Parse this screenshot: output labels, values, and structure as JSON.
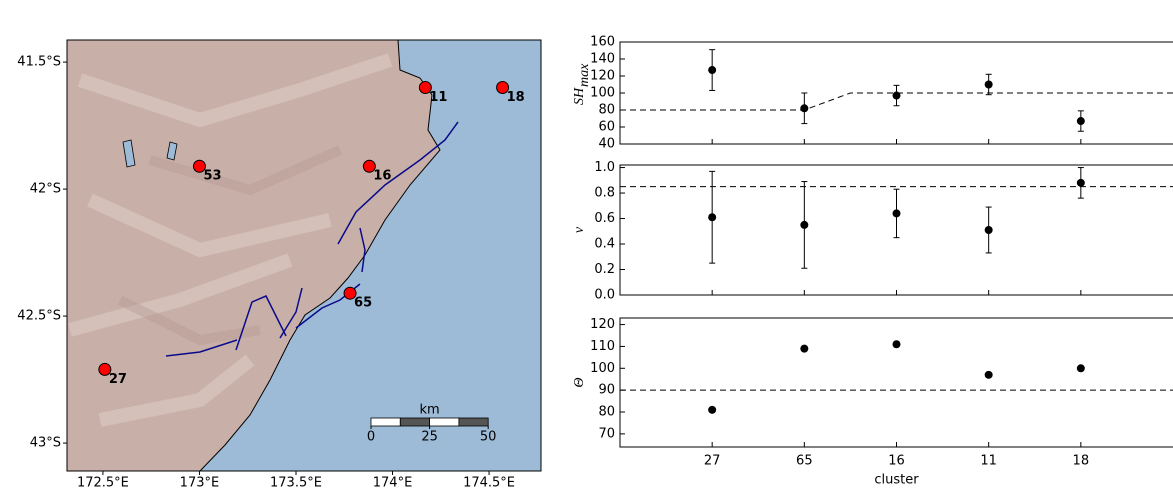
{
  "chart_data": [
    {
      "type": "map",
      "xlim": [
        172.314,
        174.769
      ],
      "ylim": [
        -43.11,
        -41.413
      ],
      "xticks": [
        {
          "value": 172.5,
          "label": "172.5°E"
        },
        {
          "value": 173,
          "label": "173°E"
        },
        {
          "value": 173.5,
          "label": "173.5°E"
        },
        {
          "value": 174,
          "label": "174°E"
        },
        {
          "value": 174.5,
          "label": "174.5°E"
        }
      ],
      "yticks": [
        {
          "value": -41.5,
          "label": "41.5°S"
        },
        {
          "value": -42,
          "label": "42°S"
        },
        {
          "value": -42.5,
          "label": "42.5°S"
        },
        {
          "value": -43,
          "label": "43°S"
        }
      ],
      "points": {
        "labels": [
          "11",
          "18",
          "53",
          "16",
          "65",
          "27"
        ],
        "x": [
          174.17,
          174.57,
          173.0,
          173.88,
          173.78,
          172.51
        ],
        "y": [
          -41.6,
          -41.6,
          -41.91,
          -41.91,
          -42.41,
          -42.71
        ],
        "color": "#ff0000"
      },
      "scale_bar": {
        "title": "km",
        "ticks": [
          0,
          25,
          50
        ]
      }
    },
    {
      "type": "errorbar",
      "ylabel": "SH",
      "ylabel_sub": "max",
      "values": [
        127,
        82,
        97,
        110,
        67
      ],
      "errors": [
        24,
        18,
        12,
        12,
        12
      ],
      "ylim": [
        40,
        160
      ],
      "yticks": [
        40,
        60,
        80,
        100,
        120,
        140,
        160
      ],
      "reference": {
        "x": [
          0,
          2,
          2.5,
          6
        ],
        "y": [
          80,
          80,
          100,
          100
        ]
      }
    },
    {
      "type": "errorbar",
      "ylabel": "ν",
      "values": [
        0.61,
        0.55,
        0.64,
        0.51,
        0.88
      ],
      "errors": [
        0.36,
        0.34,
        0.19,
        0.18,
        0.12
      ],
      "ylim": [
        0,
        1.02
      ],
      "yticks": [
        {
          "value": 0,
          "label": "0.0"
        },
        0.2,
        0.4,
        0.6,
        0.8,
        {
          "value": 1,
          "label": "1.0"
        }
      ],
      "reference": {
        "x": [
          0,
          6
        ],
        "y": [
          0.85,
          0.85
        ]
      }
    },
    {
      "type": "scatter",
      "ylabel": "Θ",
      "values": [
        81,
        109,
        111,
        97,
        100
      ],
      "ylim": [
        64,
        123
      ],
      "yticks": [
        70,
        80,
        90,
        100,
        110,
        120
      ],
      "reference": {
        "x": [
          0,
          6
        ],
        "y": [
          90,
          90
        ]
      },
      "categories": [
        "27",
        "65",
        "16",
        "11",
        "18"
      ],
      "xlim": [
        0,
        6
      ],
      "xlabel": "cluster"
    }
  ]
}
